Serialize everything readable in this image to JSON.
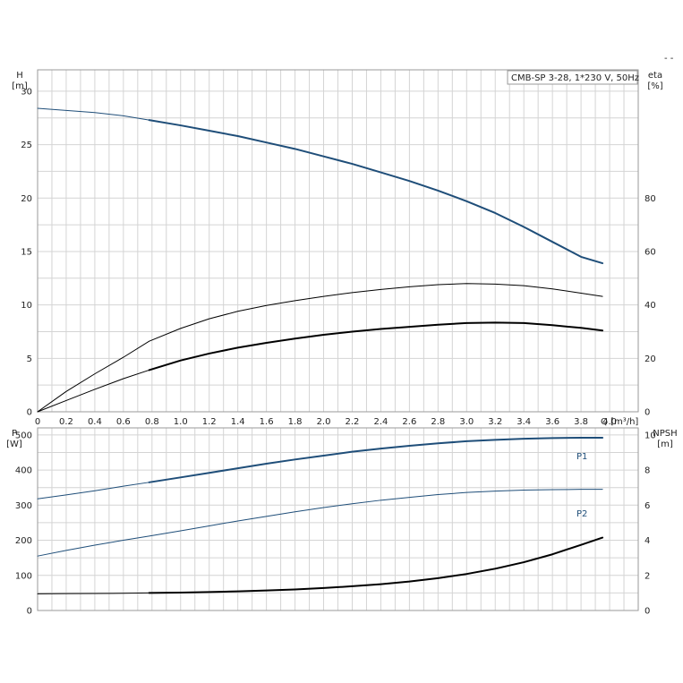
{
  "corner_mark": "- -",
  "legend": "CMB-SP 3-28, 1*230 V, 50Hz",
  "chart_data": [
    {
      "type": "line",
      "panel": "top",
      "x_unit_label": "Q [m³/h]",
      "xlim": [
        0,
        4.2
      ],
      "x_ticks": [
        0,
        0.2,
        0.4,
        0.6,
        0.8,
        1.0,
        1.2,
        1.4,
        1.6,
        1.8,
        2.0,
        2.2,
        2.4,
        2.6,
        2.8,
        3.0,
        3.2,
        3.4,
        3.6,
        3.8,
        4.0
      ],
      "x_tick_labels": [
        "0",
        "0.2",
        "0.4",
        "0.6",
        "0.8",
        "1.0",
        "1.2",
        "1.4",
        "1.6",
        "1.8",
        "2.0",
        "2.2",
        "2.4",
        "2.6",
        "2.8",
        "3.0",
        "3.2",
        "3.4",
        "3.6",
        "3.8",
        "4.0"
      ],
      "left_axis": {
        "name": "H",
        "unit": "[m]",
        "ylim": [
          0,
          32
        ],
        "ticks": [
          0,
          5,
          10,
          15,
          20,
          25,
          30
        ]
      },
      "right_axis": {
        "name": "eta",
        "unit": "[%]",
        "ylim": [
          0,
          128
        ],
        "ticks": [
          0,
          20,
          40,
          60,
          80
        ]
      },
      "grid": true,
      "legend_position": "top-right",
      "series": [
        {
          "axis": "left",
          "color": "#1f4e79",
          "style": "head",
          "x": [
            0,
            0.2,
            0.4,
            0.6,
            0.78,
            1.0,
            1.2,
            1.4,
            1.6,
            1.8,
            2.0,
            2.2,
            2.4,
            2.6,
            2.8,
            3.0,
            3.2,
            3.4,
            3.6,
            3.8,
            3.95
          ],
          "y": [
            28.4,
            28.2,
            28.0,
            27.7,
            27.3,
            26.8,
            26.3,
            25.8,
            25.2,
            24.6,
            23.9,
            23.2,
            22.4,
            21.6,
            20.7,
            19.7,
            18.6,
            17.3,
            15.9,
            14.5,
            13.9
          ],
          "solid_from": 0.78
        },
        {
          "axis": "right",
          "color": "#000000",
          "style": "eta_upper",
          "x": [
            0,
            0.2,
            0.4,
            0.6,
            0.78,
            1.0,
            1.2,
            1.4,
            1.6,
            1.8,
            2.0,
            2.2,
            2.4,
            2.6,
            2.8,
            3.0,
            3.2,
            3.4,
            3.6,
            3.8,
            3.95
          ],
          "y": [
            0,
            7.6,
            14.2,
            20.4,
            26.4,
            31.2,
            34.8,
            37.6,
            39.8,
            41.6,
            43.2,
            44.6,
            45.8,
            46.8,
            47.6,
            48.0,
            47.8,
            47.2,
            46.0,
            44.4,
            43.2
          ],
          "solid_from": 0
        },
        {
          "axis": "right",
          "color": "#000000",
          "style": "eta_lower",
          "x": [
            0,
            0.2,
            0.4,
            0.6,
            0.78,
            1.0,
            1.2,
            1.4,
            1.6,
            1.8,
            2.0,
            2.2,
            2.4,
            2.6,
            2.8,
            3.0,
            3.2,
            3.4,
            3.6,
            3.8,
            3.95
          ],
          "y": [
            0,
            4.2,
            8.4,
            12.4,
            15.6,
            19.2,
            21.8,
            24.0,
            25.8,
            27.4,
            28.8,
            30.0,
            31.0,
            31.8,
            32.6,
            33.2,
            33.4,
            33.2,
            32.4,
            31.4,
            30.4
          ],
          "solid_from": 0.78
        }
      ]
    },
    {
      "type": "line",
      "panel": "bottom",
      "xlim": [
        0,
        4.2
      ],
      "x_ticks": [
        0,
        0.2,
        0.4,
        0.6,
        0.8,
        1.0,
        1.2,
        1.4,
        1.6,
        1.8,
        2.0,
        2.2,
        2.4,
        2.6,
        2.8,
        3.0,
        3.2,
        3.4,
        3.6,
        3.8,
        4.0
      ],
      "left_axis": {
        "name": "P",
        "unit": "[W]",
        "ylim": [
          0,
          520
        ],
        "ticks": [
          0,
          100,
          200,
          300,
          400,
          500
        ]
      },
      "right_axis": {
        "name": "NPSH",
        "unit": "[m]",
        "ylim": [
          0,
          10.4
        ],
        "ticks": [
          0,
          2,
          4,
          6,
          8,
          10
        ]
      },
      "grid": true,
      "series": [
        {
          "name": "P1",
          "axis": "left",
          "color": "#1f4e79",
          "style": "p1",
          "x": [
            0,
            0.2,
            0.4,
            0.6,
            0.78,
            1.0,
            1.2,
            1.4,
            1.6,
            1.8,
            2.0,
            2.2,
            2.4,
            2.6,
            2.8,
            3.0,
            3.2,
            3.4,
            3.6,
            3.8,
            3.95
          ],
          "y": [
            318,
            329,
            341,
            354,
            365,
            379,
            392,
            405,
            418,
            430,
            441,
            452,
            461,
            469,
            476,
            482,
            486,
            489,
            491,
            492,
            492
          ],
          "solid_from": 0.78
        },
        {
          "name": "P2",
          "axis": "left",
          "color": "#1f4e79",
          "style": "p2",
          "x": [
            0,
            0.2,
            0.4,
            0.6,
            0.78,
            1.0,
            1.2,
            1.4,
            1.6,
            1.8,
            2.0,
            2.2,
            2.4,
            2.6,
            2.8,
            3.0,
            3.2,
            3.4,
            3.6,
            3.8,
            3.95
          ],
          "y": [
            155,
            171,
            186,
            200,
            212,
            227,
            241,
            255,
            268,
            281,
            293,
            304,
            314,
            322,
            330,
            336,
            340,
            343,
            344,
            345,
            345
          ],
          "solid_from": 0
        },
        {
          "axis": "right",
          "color": "#000000",
          "style": "npsh",
          "x": [
            0,
            0.2,
            0.4,
            0.6,
            0.78,
            1.0,
            1.2,
            1.4,
            1.6,
            1.8,
            2.0,
            2.2,
            2.4,
            2.6,
            2.8,
            3.0,
            3.2,
            3.4,
            3.6,
            3.8,
            3.95
          ],
          "y": [
            0.95,
            0.96,
            0.97,
            0.98,
            1.0,
            1.02,
            1.05,
            1.09,
            1.14,
            1.2,
            1.28,
            1.38,
            1.5,
            1.65,
            1.84,
            2.08,
            2.38,
            2.75,
            3.2,
            3.74,
            4.15
          ],
          "solid_from": 0.78
        }
      ]
    }
  ]
}
